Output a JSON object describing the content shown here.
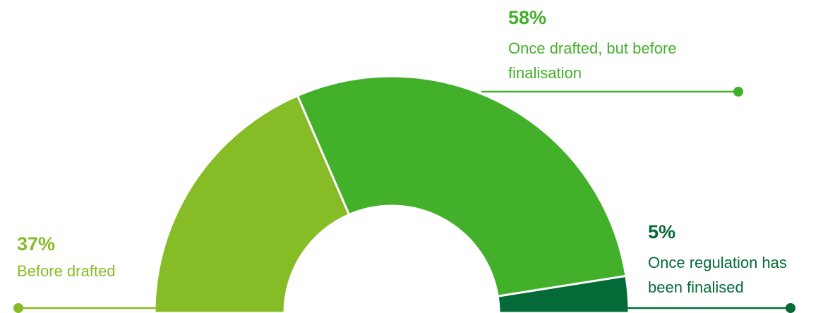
{
  "chart_data": {
    "type": "pie",
    "variant": "semi-donut",
    "title": "",
    "slices": [
      {
        "label_lines": [
          "Before drafted"
        ],
        "value": 37,
        "value_label": "37%",
        "color": "#86bc25"
      },
      {
        "label_lines": [
          "Once drafted, but before",
          "finalisation"
        ],
        "value": 58,
        "value_label": "58%",
        "color": "#43b02a"
      },
      {
        "label_lines": [
          "Once regulation has",
          "been finalised"
        ],
        "value": 5,
        "value_label": "5%",
        "color": "#046a38"
      }
    ]
  }
}
